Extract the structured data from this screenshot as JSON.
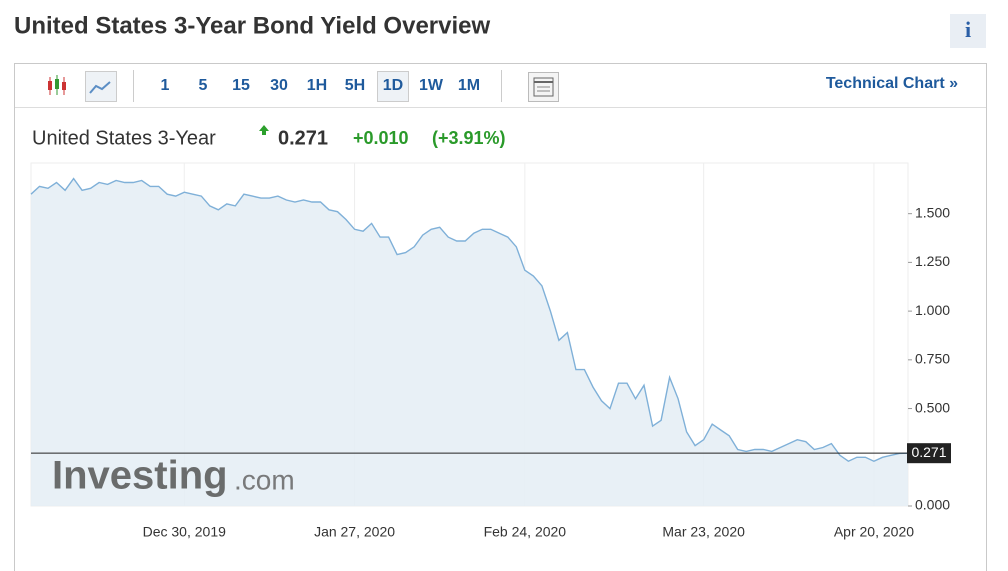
{
  "header": {
    "title": "United States 3-Year Bond Yield Overview",
    "info": "i"
  },
  "toolbar": {
    "intervals": [
      "1",
      "5",
      "15",
      "30",
      "1H",
      "5H",
      "1D",
      "1W",
      "1M"
    ],
    "technical_chart": "Technical Chart »"
  },
  "chart_data": {
    "type": "area",
    "name": "United States 3-Year",
    "last_price": 0.271,
    "change": "+0.010",
    "change_pct": "(+3.91%)",
    "watermark_brand": "Investing",
    "watermark_domain": ".com",
    "color": "#7fb0d8",
    "fill": "#e4edf5",
    "categories": [
      null,
      null,
      null,
      null,
      null,
      null,
      null,
      null,
      null,
      null,
      null,
      null,
      null,
      null,
      null,
      null,
      null,
      null,
      "Dec 30, 2019",
      null,
      null,
      null,
      null,
      null,
      null,
      null,
      null,
      null,
      null,
      null,
      null,
      null,
      null,
      null,
      null,
      null,
      null,
      null,
      "Jan 27, 2020",
      null,
      null,
      null,
      null,
      null,
      null,
      null,
      null,
      null,
      null,
      null,
      null,
      null,
      null,
      null,
      null,
      null,
      null,
      null,
      "Feb 24, 2020",
      null,
      null,
      null,
      null,
      null,
      null,
      null,
      null,
      null,
      null,
      null,
      null,
      null,
      null,
      null,
      null,
      null,
      null,
      null,
      null,
      "Mar 23, 2020",
      null,
      null,
      null,
      null,
      null,
      null,
      null,
      null,
      null,
      null,
      null,
      null,
      null,
      null,
      null,
      null,
      null,
      null,
      null,
      "Apr 20, 2020",
      null,
      null,
      null,
      null
    ],
    "values": [
      1.6,
      1.64,
      1.63,
      1.66,
      1.62,
      1.68,
      1.62,
      1.63,
      1.66,
      1.65,
      1.67,
      1.66,
      1.66,
      1.67,
      1.64,
      1.64,
      1.6,
      1.59,
      1.61,
      1.6,
      1.59,
      1.54,
      1.52,
      1.55,
      1.54,
      1.6,
      1.59,
      1.58,
      1.58,
      1.59,
      1.57,
      1.56,
      1.57,
      1.56,
      1.56,
      1.52,
      1.51,
      1.47,
      1.42,
      1.41,
      1.45,
      1.38,
      1.38,
      1.29,
      1.3,
      1.33,
      1.39,
      1.42,
      1.43,
      1.38,
      1.36,
      1.36,
      1.4,
      1.42,
      1.42,
      1.4,
      1.38,
      1.33,
      1.21,
      1.18,
      1.13,
      1.0,
      0.85,
      0.89,
      0.7,
      0.7,
      0.61,
      0.54,
      0.5,
      0.63,
      0.63,
      0.55,
      0.62,
      0.41,
      0.44,
      0.66,
      0.55,
      0.38,
      0.31,
      0.34,
      0.42,
      0.39,
      0.36,
      0.29,
      0.28,
      0.29,
      0.29,
      0.28,
      0.3,
      0.32,
      0.34,
      0.33,
      0.29,
      0.3,
      0.32,
      0.26,
      0.23,
      0.25,
      0.25,
      0.23,
      0.25,
      0.26,
      0.27,
      0.271
    ],
    "ylim": [
      0,
      1.76
    ],
    "yticks": [
      {
        "value": 0,
        "label": "0.000"
      },
      {
        "value": 0.5,
        "label": "0.500"
      },
      {
        "value": 0.75,
        "label": "0.750"
      },
      {
        "value": 1,
        "label": "1.000"
      },
      {
        "value": 1.25,
        "label": "1.250"
      },
      {
        "value": 1.5,
        "label": "1.500"
      }
    ],
    "grid": true
  }
}
